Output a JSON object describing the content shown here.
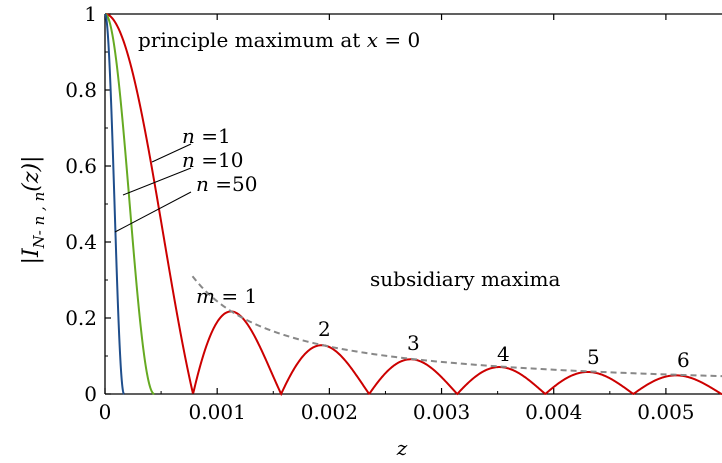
{
  "chart_data": {
    "type": "line",
    "xlabel": "z",
    "ylabel": "|I N-n, n (z)|",
    "xlim": [
      0,
      0.0055
    ],
    "ylim": [
      0,
      1
    ],
    "x_ticks": [
      "0",
      "0.001",
      "0.002",
      "0.003",
      "0.004",
      "0.005"
    ],
    "y_ticks": [
      "0",
      "0.2",
      "0.4",
      "0.6",
      "0.8",
      "1"
    ],
    "x_tick_values": [
      0,
      0.001,
      0.002,
      0.003,
      0.004,
      0.005
    ],
    "y_tick_values": [
      0,
      0.2,
      0.4,
      0.6,
      0.8,
      1
    ],
    "grid": false,
    "series": [
      {
        "name": "n =1",
        "color": "#cc0000",
        "zero_spacing": 0.000785,
        "subsidiary_maxima": [
          {
            "m": 1,
            "x": 0.00112,
            "y": 0.217
          },
          {
            "m": 2,
            "x": 0.00194,
            "y": 0.128
          },
          {
            "m": 3,
            "x": 0.00273,
            "y": 0.091
          },
          {
            "m": 4,
            "x": 0.00351,
            "y": 0.071
          },
          {
            "m": 5,
            "x": 0.0043,
            "y": 0.058
          },
          {
            "m": 6,
            "x": 0.00508,
            "y": 0.049
          }
        ]
      },
      {
        "name": "n =10",
        "color": "#66aa22",
        "zero_at": 0.00044
      },
      {
        "name": "n =50",
        "color": "#1f4e8c",
        "zero_at": 0.00017
      }
    ],
    "envelope": {
      "color": "#888888",
      "style": "dashed",
      "x_start": 0.00078,
      "x_end": 0.0055,
      "y_start": 0.31,
      "y_end": 0.047
    },
    "annotations": {
      "principal_prefix": "principle maximum at",
      "principal_var": "x",
      "principal_suffix": "= 0",
      "subsidiary": "subsidiary maxima",
      "m_var": "m",
      "m_eq": "= 1",
      "order_labels": [
        "2",
        "3",
        "4",
        "5",
        "6"
      ],
      "n_var": "n",
      "n_values": [
        "=1",
        "=10",
        "=50"
      ]
    },
    "ylabel_parts": {
      "bar_left": "|",
      "var": "I",
      "sub": "N- n , n",
      "arg": "(z)",
      "bar_right": "|"
    }
  }
}
